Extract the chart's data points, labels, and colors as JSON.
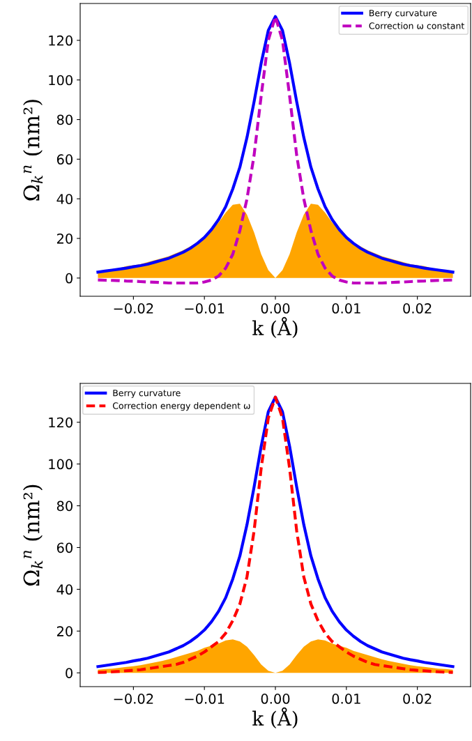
{
  "chart_data": [
    {
      "type": "line",
      "xlabel": "k (Å)",
      "ylabel": "Ω$_{k}$$^{n}$ (nm²)",
      "legend": "top right",
      "grid": false,
      "x": [
        -0.025,
        -0.024,
        -0.023,
        -0.022,
        -0.021,
        -0.02,
        -0.019,
        -0.018,
        -0.017,
        -0.016,
        -0.015,
        -0.014,
        -0.013,
        -0.012,
        -0.011,
        -0.01,
        -0.009,
        -0.008,
        -0.007,
        -0.006,
        -0.005,
        -0.004,
        -0.003,
        -0.002,
        -0.001,
        0,
        0.001,
        0.002,
        0.003,
        0.004,
        0.005,
        0.006,
        0.007,
        0.008,
        0.009,
        0.01,
        0.011,
        0.012,
        0.013,
        0.014,
        0.015,
        0.016,
        0.017,
        0.018,
        0.019,
        0.02,
        0.021,
        0.022,
        0.023,
        0.024,
        0.025
      ],
      "xlim": [
        -0.0275,
        0.0275
      ],
      "xticks": [
        {
          "value": -0.02,
          "label": "−0.02"
        },
        {
          "value": -0.01,
          "label": "−0.01"
        },
        {
          "value": 0,
          "label": "0.00"
        },
        {
          "value": 0.01,
          "label": "0.01"
        },
        {
          "value": 0.02,
          "label": "0.02"
        }
      ],
      "ylim": [
        -9.2,
        138.6
      ],
      "yticks": [
        0,
        20,
        40,
        60,
        80,
        100,
        120
      ],
      "series": [
        {
          "type": "area",
          "color": "#ffa500",
          "values": [
            3.5,
            4,
            4.5,
            5,
            6,
            6.5,
            7,
            8,
            9,
            10,
            11,
            12.5,
            14,
            16,
            18,
            21,
            24.5,
            28,
            33,
            37,
            37.5,
            32,
            23,
            12,
            4,
            0,
            4,
            12,
            23,
            32,
            37.5,
            37,
            33,
            28,
            24.5,
            21,
            18,
            16,
            14,
            12.5,
            11,
            10,
            9,
            8,
            7,
            6.5,
            6,
            5,
            4.5,
            4,
            3.5
          ]
        },
        {
          "name": "Berry curvature",
          "color": "#0000ff",
          "line_style": "solid",
          "values": [
            3,
            3.5,
            4,
            4.5,
            5,
            5.7,
            6.3,
            7,
            8,
            9,
            10,
            11.5,
            13,
            15,
            17.5,
            20.5,
            24.5,
            29.5,
            36,
            45,
            56,
            71,
            89,
            108.5,
            125,
            132,
            125,
            108.5,
            89,
            71,
            56,
            45,
            36,
            29.5,
            24.5,
            20.5,
            17.5,
            15,
            13,
            11.5,
            10,
            9,
            8,
            7,
            6.3,
            5.7,
            5,
            4.5,
            4,
            3.5,
            3
          ]
        },
        {
          "name": "Correction ω constant",
          "color": "#bf00bf",
          "line_style": "dashed",
          "values": [
            -1,
            -1.1,
            -1.2,
            -1.3,
            -1.5,
            -1.6,
            -1.8,
            -2,
            -2.1,
            -2.3,
            -2.5,
            -2.5,
            -2.5,
            -2.5,
            -2.5,
            -2,
            -1,
            1,
            5,
            12,
            24,
            40,
            62,
            92,
            120,
            132,
            120,
            92,
            62,
            40,
            24,
            12,
            5,
            1,
            -1,
            -2,
            -2.5,
            -2.5,
            -2.5,
            -2.5,
            -2.5,
            -2.3,
            -2.1,
            -2,
            -1.8,
            -1.6,
            -1.5,
            -1.3,
            -1.2,
            -1.1,
            -1
          ]
        }
      ]
    },
    {
      "type": "line",
      "xlabel": "k (Å)",
      "ylabel": "Ω$_{k}$$^{n}$ (nm²)",
      "legend": "top left",
      "grid": false,
      "x": [
        -0.025,
        -0.024,
        -0.023,
        -0.022,
        -0.021,
        -0.02,
        -0.019,
        -0.018,
        -0.017,
        -0.016,
        -0.015,
        -0.014,
        -0.013,
        -0.012,
        -0.011,
        -0.01,
        -0.009,
        -0.008,
        -0.007,
        -0.006,
        -0.005,
        -0.004,
        -0.003,
        -0.002,
        -0.001,
        0,
        0.001,
        0.002,
        0.003,
        0.004,
        0.005,
        0.006,
        0.007,
        0.008,
        0.009,
        0.01,
        0.011,
        0.012,
        0.013,
        0.014,
        0.015,
        0.016,
        0.017,
        0.018,
        0.019,
        0.02,
        0.021,
        0.022,
        0.023,
        0.024,
        0.025
      ],
      "xlim": [
        -0.0275,
        0.0275
      ],
      "xticks": [
        {
          "value": -0.02,
          "label": "−0.02"
        },
        {
          "value": -0.01,
          "label": "−0.01"
        },
        {
          "value": 0,
          "label": "0.00"
        },
        {
          "value": 0.01,
          "label": "0.01"
        },
        {
          "value": 0.02,
          "label": "0.02"
        }
      ],
      "ylim": [
        -6.6,
        138.6
      ],
      "yticks": [
        0,
        20,
        40,
        60,
        80,
        100,
        120
      ],
      "series": [
        {
          "type": "area",
          "color": "#ffa500",
          "values": [
            1.5,
            1.8,
            2,
            2.4,
            2.8,
            3.2,
            3.7,
            4.3,
            5,
            5.7,
            6.5,
            7.5,
            8.5,
            9.5,
            10.5,
            12,
            13,
            14,
            15.5,
            16,
            15,
            12.5,
            8.5,
            4,
            1,
            0,
            1,
            4,
            8.5,
            12.5,
            15,
            16,
            15.5,
            14,
            13,
            12,
            10.5,
            9.5,
            8.5,
            7.5,
            6.5,
            5.7,
            5,
            4.3,
            3.7,
            3.2,
            2.8,
            2.4,
            2,
            1.8,
            1.5
          ]
        },
        {
          "name": "Berry curvature",
          "color": "#0000ff",
          "line_style": "solid",
          "values": [
            3,
            3.5,
            4,
            4.5,
            5,
            5.7,
            6.3,
            7,
            8,
            9,
            10,
            11.5,
            13,
            15,
            17.5,
            20.5,
            24.5,
            29.5,
            36,
            45,
            56,
            71,
            89,
            108.5,
            125,
            132,
            125,
            108.5,
            89,
            71,
            56,
            45,
            36,
            29.5,
            24.5,
            20.5,
            17.5,
            15,
            13,
            11.5,
            10,
            9,
            8,
            7,
            6.3,
            5.7,
            5,
            4.5,
            4,
            3.5,
            3
          ]
        },
        {
          "name": "Correction energy dependent ω",
          "color": "#ff0000",
          "line_style": "dashed",
          "values": [
            0.2,
            0.3,
            0.5,
            0.7,
            1,
            1.2,
            1.5,
            2,
            2.5,
            3,
            3.5,
            4,
            5,
            6.5,
            8,
            10,
            12.5,
            15,
            19,
            25,
            33,
            46,
            68,
            98,
            122,
            132,
            122,
            98,
            68,
            46,
            33,
            25,
            19,
            15,
            12.5,
            10,
            8,
            6.5,
            5,
            4,
            3.5,
            3,
            2.5,
            2,
            1.5,
            1.2,
            1,
            0.7,
            0.5,
            0.3,
            0.2
          ]
        }
      ]
    }
  ]
}
